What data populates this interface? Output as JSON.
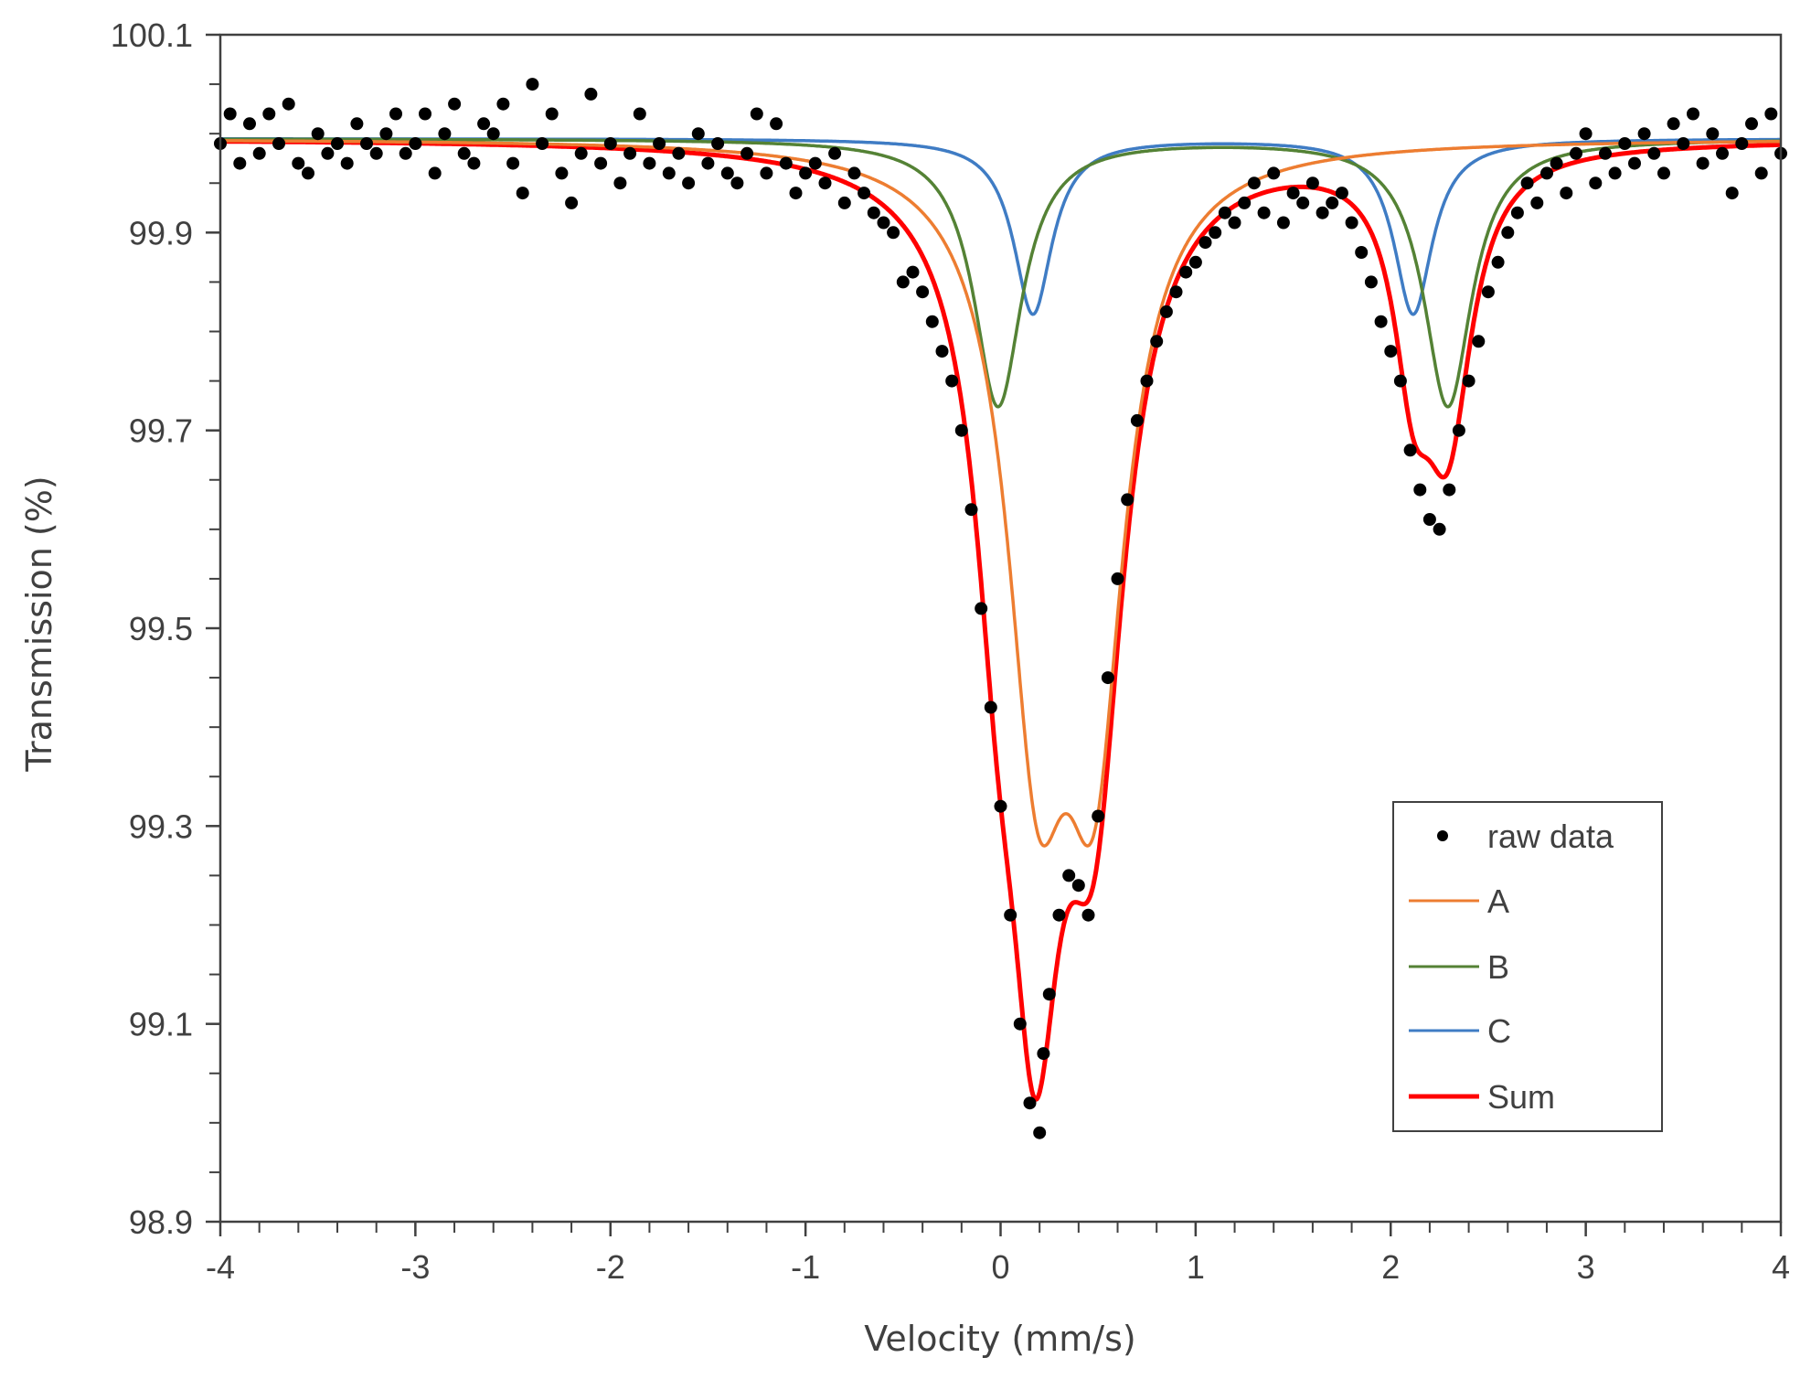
{
  "chart_data": {
    "type": "scatter",
    "title": "",
    "xlabel": "Velocity (mm/s)",
    "ylabel": "Transmission (%)",
    "xlim": [
      -4,
      4
    ],
    "ylim": [
      98.9,
      100.1
    ],
    "x_ticks": [
      -4,
      -3,
      -2,
      -1,
      0,
      1,
      2,
      3,
      4
    ],
    "x_tick_labels": [
      "-4",
      "-3",
      "-2",
      "-1",
      "0",
      "1",
      "2",
      "3",
      "4"
    ],
    "x_minor_step": 0.2,
    "y_ticks": [
      98.9,
      99.1,
      99.3,
      99.5,
      99.7,
      99.9,
      100.1
    ],
    "y_tick_labels": [
      "98.9",
      "99.1",
      "99.3",
      "99.5",
      "99.7",
      "99.9",
      "100.1"
    ],
    "y_minor_step": 0.05,
    "grid": false,
    "legend_position": "bottom-right",
    "legend": [
      {
        "label": "raw data",
        "kind": "marker",
        "color": "#000000"
      },
      {
        "label": "A",
        "kind": "line",
        "color": "#ED7D31"
      },
      {
        "label": "B",
        "kind": "line",
        "color": "#548235"
      },
      {
        "label": "C",
        "kind": "line",
        "color": "#3F7CC4"
      },
      {
        "label": "Sum",
        "kind": "line",
        "color": "#FF0000"
      }
    ],
    "baseline": 99.995,
    "components": [
      {
        "name": "A",
        "color": "#ED7D31",
        "lines": [
          {
            "center": 0.19,
            "depth": 0.54,
            "hwhm": 0.19
          },
          {
            "center": 0.48,
            "depth": 0.54,
            "hwhm": 0.19
          }
        ]
      },
      {
        "name": "B",
        "color": "#548235",
        "lines": [
          {
            "center": -0.013,
            "depth": 0.27,
            "hwhm": 0.15
          },
          {
            "center": 2.293,
            "depth": 0.27,
            "hwhm": 0.15
          }
        ]
      },
      {
        "name": "C",
        "color": "#3F7CC4",
        "lines": [
          {
            "center": 0.166,
            "depth": 0.177,
            "hwhm": 0.12
          },
          {
            "center": 2.115,
            "depth": 0.177,
            "hwhm": 0.12
          }
        ]
      }
    ],
    "sum": {
      "name": "Sum",
      "color": "#FF0000"
    },
    "raw_data": [
      [
        -4.0,
        99.99
      ],
      [
        -3.95,
        100.02
      ],
      [
        -3.9,
        99.97
      ],
      [
        -3.85,
        100.01
      ],
      [
        -3.8,
        99.98
      ],
      [
        -3.75,
        100.02
      ],
      [
        -3.7,
        99.99
      ],
      [
        -3.65,
        100.03
      ],
      [
        -3.6,
        99.97
      ],
      [
        -3.55,
        99.96
      ],
      [
        -3.5,
        100.0
      ],
      [
        -3.45,
        99.98
      ],
      [
        -3.4,
        99.99
      ],
      [
        -3.35,
        99.97
      ],
      [
        -3.3,
        100.01
      ],
      [
        -3.25,
        99.99
      ],
      [
        -3.2,
        99.98
      ],
      [
        -3.15,
        100.0
      ],
      [
        -3.1,
        100.02
      ],
      [
        -3.05,
        99.98
      ],
      [
        -3.0,
        99.99
      ],
      [
        -2.95,
        100.02
      ],
      [
        -2.9,
        99.96
      ],
      [
        -2.85,
        100.0
      ],
      [
        -2.8,
        100.03
      ],
      [
        -2.75,
        99.98
      ],
      [
        -2.7,
        99.97
      ],
      [
        -2.65,
        100.01
      ],
      [
        -2.6,
        100.0
      ],
      [
        -2.55,
        100.03
      ],
      [
        -2.5,
        99.97
      ],
      [
        -2.45,
        99.94
      ],
      [
        -2.4,
        100.05
      ],
      [
        -2.35,
        99.99
      ],
      [
        -2.3,
        100.02
      ],
      [
        -2.25,
        99.96
      ],
      [
        -2.2,
        99.93
      ],
      [
        -2.15,
        99.98
      ],
      [
        -2.1,
        100.04
      ],
      [
        -2.05,
        99.97
      ],
      [
        -2.0,
        99.99
      ],
      [
        -1.95,
        99.95
      ],
      [
        -1.9,
        99.98
      ],
      [
        -1.85,
        100.02
      ],
      [
        -1.8,
        99.97
      ],
      [
        -1.75,
        99.99
      ],
      [
        -1.7,
        99.96
      ],
      [
        -1.65,
        99.98
      ],
      [
        -1.6,
        99.95
      ],
      [
        -1.55,
        100.0
      ],
      [
        -1.5,
        99.97
      ],
      [
        -1.45,
        99.99
      ],
      [
        -1.4,
        99.96
      ],
      [
        -1.35,
        99.95
      ],
      [
        -1.3,
        99.98
      ],
      [
        -1.25,
        100.02
      ],
      [
        -1.2,
        99.96
      ],
      [
        -1.15,
        100.01
      ],
      [
        -1.1,
        99.97
      ],
      [
        -1.05,
        99.94
      ],
      [
        -1.0,
        99.96
      ],
      [
        -0.95,
        99.97
      ],
      [
        -0.9,
        99.95
      ],
      [
        -0.85,
        99.98
      ],
      [
        -0.8,
        99.93
      ],
      [
        -0.75,
        99.96
      ],
      [
        -0.7,
        99.94
      ],
      [
        -0.65,
        99.92
      ],
      [
        -0.6,
        99.91
      ],
      [
        -0.55,
        99.9
      ],
      [
        -0.5,
        99.85
      ],
      [
        -0.45,
        99.86
      ],
      [
        -0.4,
        99.84
      ],
      [
        -0.35,
        99.81
      ],
      [
        -0.3,
        99.78
      ],
      [
        -0.25,
        99.75
      ],
      [
        -0.2,
        99.7
      ],
      [
        -0.15,
        99.62
      ],
      [
        -0.1,
        99.52
      ],
      [
        -0.05,
        99.42
      ],
      [
        0.0,
        99.32
      ],
      [
        0.05,
        99.21
      ],
      [
        0.1,
        99.1
      ],
      [
        0.15,
        99.02
      ],
      [
        0.2,
        98.99
      ],
      [
        0.22,
        99.07
      ],
      [
        0.25,
        99.13
      ],
      [
        0.3,
        99.21
      ],
      [
        0.35,
        99.25
      ],
      [
        0.4,
        99.24
      ],
      [
        0.45,
        99.21
      ],
      [
        0.5,
        99.31
      ],
      [
        0.55,
        99.45
      ],
      [
        0.6,
        99.55
      ],
      [
        0.65,
        99.63
      ],
      [
        0.7,
        99.71
      ],
      [
        0.75,
        99.75
      ],
      [
        0.8,
        99.79
      ],
      [
        0.85,
        99.82
      ],
      [
        0.9,
        99.84
      ],
      [
        0.95,
        99.86
      ],
      [
        1.0,
        99.87
      ],
      [
        1.05,
        99.89
      ],
      [
        1.1,
        99.9
      ],
      [
        1.15,
        99.92
      ],
      [
        1.2,
        99.91
      ],
      [
        1.25,
        99.93
      ],
      [
        1.3,
        99.95
      ],
      [
        1.35,
        99.92
      ],
      [
        1.4,
        99.96
      ],
      [
        1.45,
        99.91
      ],
      [
        1.5,
        99.94
      ],
      [
        1.55,
        99.93
      ],
      [
        1.6,
        99.95
      ],
      [
        1.65,
        99.92
      ],
      [
        1.7,
        99.93
      ],
      [
        1.75,
        99.94
      ],
      [
        1.8,
        99.91
      ],
      [
        1.85,
        99.88
      ],
      [
        1.9,
        99.85
      ],
      [
        1.95,
        99.81
      ],
      [
        2.0,
        99.78
      ],
      [
        2.05,
        99.75
      ],
      [
        2.1,
        99.68
      ],
      [
        2.15,
        99.64
      ],
      [
        2.2,
        99.61
      ],
      [
        2.25,
        99.6
      ],
      [
        2.3,
        99.64
      ],
      [
        2.35,
        99.7
      ],
      [
        2.4,
        99.75
      ],
      [
        2.45,
        99.79
      ],
      [
        2.5,
        99.84
      ],
      [
        2.55,
        99.87
      ],
      [
        2.6,
        99.9
      ],
      [
        2.65,
        99.92
      ],
      [
        2.7,
        99.95
      ],
      [
        2.75,
        99.93
      ],
      [
        2.8,
        99.96
      ],
      [
        2.85,
        99.97
      ],
      [
        2.9,
        99.94
      ],
      [
        2.95,
        99.98
      ],
      [
        3.0,
        100.0
      ],
      [
        3.05,
        99.95
      ],
      [
        3.1,
        99.98
      ],
      [
        3.15,
        99.96
      ],
      [
        3.2,
        99.99
      ],
      [
        3.25,
        99.97
      ],
      [
        3.3,
        100.0
      ],
      [
        3.35,
        99.98
      ],
      [
        3.4,
        99.96
      ],
      [
        3.45,
        100.01
      ],
      [
        3.5,
        99.99
      ],
      [
        3.55,
        100.02
      ],
      [
        3.6,
        99.97
      ],
      [
        3.65,
        100.0
      ],
      [
        3.7,
        99.98
      ],
      [
        3.75,
        99.94
      ],
      [
        3.8,
        99.99
      ],
      [
        3.85,
        100.01
      ],
      [
        3.9,
        99.96
      ],
      [
        3.95,
        100.02
      ],
      [
        4.0,
        99.98
      ]
    ]
  }
}
